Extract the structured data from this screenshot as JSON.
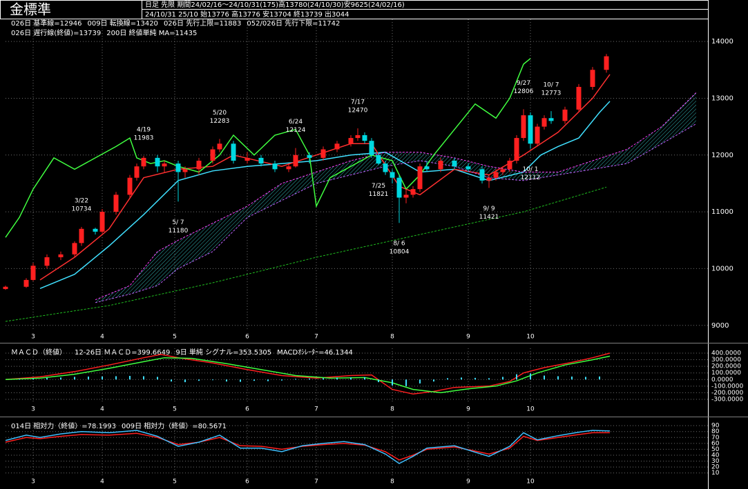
{
  "header": {
    "title": "金標準",
    "info1": "日足 先限 期間24/02/16～24/10/31(175)高13780(24/10/30)安9625(24/02/16)",
    "info2": "24/10/31 25/10 始13776 高13776 安13704 終13739 出3044"
  },
  "chart_data": [
    {
      "type": "candlestick",
      "x": [
        0,
        6,
        8,
        12,
        16,
        20,
        22,
        26,
        28,
        32,
        36,
        38,
        40,
        44,
        46,
        50,
        52,
        56,
        60,
        62,
        66,
        70,
        74,
        78,
        82,
        84,
        88,
        92,
        96,
        100,
        102,
        104,
        106,
        108,
        110,
        112,
        114,
        116,
        118,
        120,
        122,
        126,
        130,
        134,
        138,
        140,
        142,
        144,
        146,
        148,
        150,
        152,
        154,
        156,
        158,
        162,
        166,
        170,
        174
      ],
      "open": [
        9640,
        9680,
        9800,
        10050,
        10200,
        10250,
        10450,
        10700,
        10650,
        11000,
        11300,
        11600,
        11800,
        11950,
        11800,
        11850,
        11700,
        11750,
        11900,
        12100,
        12200,
        11900,
        11950,
        11850,
        11750,
        11800,
        12000,
        11950,
        12100,
        12200,
        12300,
        12350,
        12250,
        12000,
        11850,
        11700,
        11600,
        11250,
        11300,
        11400,
        11800,
        11750,
        11900,
        11800,
        11750,
        11550,
        11600,
        11700,
        11750,
        11900,
        12300,
        12700,
        12200,
        12500,
        12650,
        12600,
        12800,
        13200,
        13500
      ],
      "high": [
        9700,
        9830,
        10100,
        10250,
        10300,
        10480,
        10734,
        10720,
        11050,
        11350,
        11650,
        11850,
        11983,
        12000,
        11900,
        11900,
        11800,
        11950,
        12150,
        12283,
        12250,
        12050,
        12000,
        11900,
        11850,
        12124,
        12050,
        12150,
        12250,
        12350,
        12470,
        12400,
        12300,
        12050,
        11900,
        11750,
        11650,
        11400,
        11450,
        11850,
        11900,
        11950,
        11950,
        11850,
        11800,
        11650,
        11750,
        11800,
        11950,
        12350,
        12806,
        12750,
        12550,
        12700,
        12773,
        12850,
        13250,
        13550,
        13780
      ],
      "low": [
        9625,
        9660,
        9780,
        10000,
        10150,
        10200,
        10400,
        10600,
        10620,
        10950,
        11250,
        11550,
        11750,
        11700,
        11700,
        11180,
        11600,
        11650,
        11850,
        12050,
        11850,
        11850,
        11800,
        11700,
        11700,
        11780,
        11850,
        11900,
        12050,
        12150,
        12250,
        12200,
        11950,
        11821,
        11650,
        11500,
        10804,
        11150,
        11250,
        11350,
        11700,
        11700,
        11750,
        11700,
        11500,
        11421,
        11550,
        11650,
        11700,
        11850,
        12250,
        12112,
        12150,
        12450,
        12550,
        12550,
        12750,
        13150,
        13450
      ],
      "close": [
        9680,
        9800,
        10050,
        10200,
        10250,
        10450,
        10700,
        10650,
        11000,
        11300,
        11600,
        11800,
        11950,
        11800,
        11850,
        11700,
        11750,
        11900,
        12100,
        12200,
        11900,
        11950,
        11850,
        11750,
        11800,
        12000,
        11950,
        12100,
        12200,
        12300,
        12350,
        12250,
        12000,
        11850,
        11700,
        11600,
        11250,
        11300,
        11400,
        11800,
        11750,
        11900,
        11800,
        11750,
        11550,
        11600,
        11700,
        11750,
        11900,
        12300,
        12700,
        12200,
        12500,
        12650,
        12600,
        12800,
        13200,
        13500,
        13739
      ],
      "up_color": "#ff2020",
      "down_color": "#00d8e0",
      "series": [
        {
          "name": "026日 基準線=12946",
          "color": "#40e0ff",
          "x": [
            10,
            20,
            30,
            40,
            50,
            60,
            70,
            80,
            90,
            100,
            110,
            120,
            130,
            140,
            150,
            155,
            160,
            166,
            172,
            175
          ],
          "values": [
            9650,
            9900,
            10400,
            10950,
            11550,
            11720,
            11800,
            11850,
            11900,
            12000,
            12050,
            11700,
            11750,
            11550,
            11700,
            12000,
            12150,
            12300,
            12750,
            12946
          ]
        },
        {
          "name": "009日 転換線=13420",
          "color": "#ff3030",
          "x": [
            10,
            20,
            30,
            40,
            50,
            60,
            66,
            80,
            90,
            100,
            106,
            114,
            120,
            130,
            140,
            150,
            160,
            170,
            175
          ],
          "values": [
            9800,
            10200,
            10700,
            11600,
            11750,
            11800,
            12000,
            11800,
            12000,
            12200,
            12200,
            11450,
            11300,
            11750,
            11650,
            12000,
            12400,
            13000,
            13420
          ]
        },
        {
          "name": "026日 先行上限=11883",
          "color": "#ff40ff",
          "dashed": true,
          "x": [
            26,
            36,
            44,
            50,
            60,
            70,
            80,
            90,
            100,
            110,
            120,
            130,
            140,
            150,
            160,
            170,
            180,
            190,
            200
          ],
          "values": [
            9450,
            9700,
            10300,
            10500,
            10800,
            11100,
            11500,
            11700,
            11900,
            12050,
            12050,
            11950,
            11800,
            11700,
            11700,
            11900,
            12100,
            12500,
            13100
          ]
        },
        {
          "name": "052/026日 先行下限=11742",
          "color": "#c060ff",
          "dashed": true,
          "x": [
            26,
            36,
            44,
            50,
            60,
            70,
            80,
            90,
            100,
            110,
            120,
            130,
            140,
            150,
            160,
            170,
            180,
            190,
            200
          ],
          "values": [
            9400,
            9550,
            9700,
            10000,
            10300,
            10900,
            11200,
            11500,
            11650,
            11800,
            11900,
            11800,
            11600,
            11550,
            11650,
            11750,
            11850,
            12200,
            12550
          ]
        },
        {
          "name": "026日 遅行線(終値)=13739",
          "color": "#40ff40",
          "x": [
            0,
            4,
            8,
            14,
            20,
            26,
            32,
            36,
            38,
            42,
            46,
            50,
            56,
            62,
            66,
            72,
            78,
            84,
            88,
            90,
            94,
            100,
            106,
            112,
            116,
            120,
            124,
            130,
            136,
            142,
            146,
            150,
            152
          ],
          "values": [
            10550,
            10900,
            11400,
            11950,
            11750,
            11950,
            12150,
            12300,
            11950,
            11850,
            11900,
            11800,
            11700,
            12000,
            12350,
            12000,
            12350,
            12450,
            12000,
            11100,
            11600,
            11800,
            12000,
            11900,
            11400,
            11650,
            12000,
            12450,
            12900,
            12650,
            13000,
            13600,
            13700
          ]
        },
        {
          "name": "200日 終値単純 MA=11435",
          "color": "#20c020",
          "dashed": true,
          "x": [
            0,
            30,
            60,
            90,
            120,
            150,
            174
          ],
          "values": [
            9070,
            9350,
            9750,
            10200,
            10600,
            11000,
            11435
          ]
        }
      ],
      "high_labels": [
        {
          "date": "3/22",
          "x": 22,
          "value": 10734
        },
        {
          "date": "4/19",
          "x": 40,
          "value": 11983
        },
        {
          "date": "5/20",
          "x": 62,
          "value": 12283
        },
        {
          "date": "6/24",
          "x": 84,
          "value": 12124
        },
        {
          "date": "7/17",
          "x": 102,
          "value": 12470
        },
        {
          "date": "9/27",
          "x": 150,
          "value": 12806
        },
        {
          "date": "10/ 7",
          "x": 158,
          "value": 12773
        }
      ],
      "low_labels": [
        {
          "date": "5/ 7",
          "x": 50,
          "value": 11180
        },
        {
          "date": "7/25",
          "x": 108,
          "value": 11821
        },
        {
          "date": "8/ 6",
          "x": 114,
          "value": 10804
        },
        {
          "date": "9/ 9",
          "x": 140,
          "value": 11421
        },
        {
          "date": "10/ 1",
          "x": 152,
          "value": 12112
        }
      ],
      "xlim": [
        0,
        202
      ],
      "xticks": [
        {
          "value": 8,
          "label": "3"
        },
        {
          "value": 28,
          "label": "4"
        },
        {
          "value": 49,
          "label": "5"
        },
        {
          "value": 70,
          "label": "6"
        },
        {
          "value": 90,
          "label": "7"
        },
        {
          "value": 112,
          "label": "8"
        },
        {
          "value": 134,
          "label": "9"
        },
        {
          "value": 152,
          "label": "10"
        }
      ],
      "ylim": [
        8900,
        14390
      ],
      "yticks": [
        9000,
        10000,
        11000,
        12000,
        13000,
        14000
      ],
      "grid": true
    },
    {
      "type": "line",
      "title": "ＭＡＣＤ（終値）",
      "series": [
        {
          "name": "12-26日 ＭＡＣＤ=399.6649",
          "color": "#ff2020",
          "x": [
            0,
            10,
            20,
            30,
            40,
            45,
            50,
            60,
            70,
            80,
            90,
            100,
            106,
            112,
            118,
            124,
            130,
            140,
            146,
            150,
            156,
            164,
            170,
            175
          ],
          "values": [
            0,
            40,
            120,
            220,
            330,
            380,
            330,
            250,
            150,
            60,
            20,
            60,
            70,
            -150,
            -220,
            -180,
            -120,
            -100,
            -30,
            100,
            180,
            260,
            330,
            400
          ]
        },
        {
          "name": "9日 単純 シグナル=353.5305",
          "color": "#40ff40",
          "x": [
            0,
            10,
            20,
            30,
            40,
            46,
            54,
            64,
            74,
            84,
            94,
            104,
            112,
            118,
            126,
            134,
            142,
            148,
            154,
            162,
            170,
            175
          ],
          "values": [
            0,
            20,
            80,
            170,
            270,
            330,
            320,
            240,
            150,
            60,
            20,
            30,
            -50,
            -150,
            -200,
            -140,
            -100,
            -20,
            100,
            220,
            300,
            354
          ]
        },
        {
          "name": "MACDｵｼﾚｰﾀｰ=46.1344",
          "color": "#40e0ff",
          "style": "bar",
          "x": [
            4,
            8,
            12,
            16,
            20,
            24,
            28,
            32,
            36,
            40,
            44,
            48,
            52,
            56,
            60,
            64,
            68,
            72,
            76,
            80,
            84,
            88,
            92,
            96,
            100,
            104,
            108,
            112,
            116,
            120,
            124,
            128,
            132,
            136,
            140,
            144,
            148,
            152,
            156,
            160,
            164,
            168,
            172
          ],
          "values": [
            10,
            15,
            25,
            30,
            40,
            45,
            45,
            50,
            55,
            50,
            40,
            -30,
            -40,
            -20,
            -10,
            -30,
            -35,
            -20,
            -25,
            -15,
            10,
            15,
            20,
            30,
            30,
            35,
            -40,
            -90,
            -100,
            -60,
            -30,
            20,
            30,
            25,
            20,
            40,
            80,
            90,
            60,
            50,
            45,
            40,
            46
          ]
        }
      ],
      "xlim": [
        0,
        202
      ],
      "xticks": [
        {
          "value": 8,
          "label": "3"
        },
        {
          "value": 28,
          "label": "4"
        },
        {
          "value": 49,
          "label": "5"
        },
        {
          "value": 70,
          "label": "6"
        },
        {
          "value": 90,
          "label": "7"
        },
        {
          "value": 112,
          "label": "8"
        },
        {
          "value": 134,
          "label": "9"
        },
        {
          "value": 152,
          "label": "10"
        }
      ],
      "ylim": [
        -363,
        473
      ],
      "yticks": [
        {
          "value": 400,
          "label": "400.0000"
        },
        {
          "value": 300,
          "label": "300.0000"
        },
        {
          "value": 200,
          "label": "200.0000"
        },
        {
          "value": 100,
          "label": "100.0000"
        },
        {
          "value": 0,
          "label": "0.0000"
        },
        {
          "value": -100,
          "label": "-100.0000"
        },
        {
          "value": -200,
          "label": "-200.0000"
        },
        {
          "value": -300,
          "label": "-300.0000"
        }
      ],
      "grid": true
    },
    {
      "type": "line",
      "series": [
        {
          "name": "014日 相対力（終値）=78.1993",
          "color": "#ff2020",
          "x": [
            0,
            6,
            10,
            16,
            22,
            30,
            38,
            44,
            50,
            56,
            62,
            68,
            74,
            80,
            86,
            92,
            98,
            104,
            110,
            114,
            118,
            122,
            130,
            136,
            140,
            146,
            150,
            154,
            160,
            166,
            170,
            175
          ],
          "values": [
            62,
            70,
            68,
            72,
            75,
            74,
            77,
            70,
            58,
            62,
            70,
            56,
            55,
            50,
            55,
            58,
            60,
            57,
            46,
            32,
            40,
            50,
            54,
            47,
            42,
            52,
            72,
            65,
            70,
            75,
            78,
            78
          ]
        },
        {
          "name": "009日 相対力（終値）=80.5671",
          "color": "#40c0ff",
          "x": [
            0,
            6,
            10,
            16,
            22,
            30,
            38,
            44,
            50,
            56,
            62,
            68,
            74,
            80,
            86,
            92,
            98,
            104,
            110,
            114,
            118,
            122,
            130,
            136,
            140,
            146,
            150,
            154,
            160,
            166,
            170,
            175
          ],
          "values": [
            65,
            74,
            70,
            76,
            80,
            78,
            82,
            72,
            55,
            62,
            74,
            52,
            52,
            46,
            56,
            60,
            63,
            58,
            42,
            26,
            38,
            52,
            56,
            45,
            38,
            55,
            78,
            66,
            73,
            79,
            82,
            81
          ]
        }
      ],
      "xlim": [
        0,
        202
      ],
      "xticks": [
        {
          "value": 8,
          "label": "3"
        },
        {
          "value": 28,
          "label": "4"
        },
        {
          "value": 49,
          "label": "5"
        },
        {
          "value": 70,
          "label": "6"
        },
        {
          "value": 90,
          "label": "7"
        },
        {
          "value": 112,
          "label": "8"
        },
        {
          "value": 134,
          "label": "9"
        },
        {
          "value": 152,
          "label": "10"
        }
      ],
      "ylim": [
        5,
        96
      ],
      "yticks": [
        90,
        80,
        70,
        60,
        50,
        40,
        30,
        20,
        10
      ],
      "grid": true
    }
  ]
}
